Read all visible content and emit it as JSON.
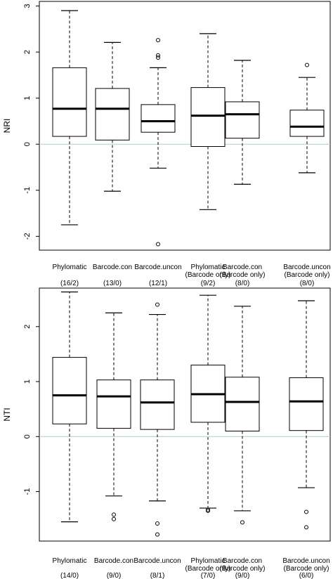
{
  "chart_data": [
    {
      "type": "box",
      "ylabel": "NRI",
      "ylim": [
        -2.3,
        3.1
      ],
      "yticks": [
        "-2",
        "-1",
        "0",
        "1",
        "2",
        "3"
      ],
      "reference_line": 0,
      "reference_color": "#9fd3d8",
      "categories": [
        {
          "line1": "Phylomatic",
          "line2": "",
          "count": "(16/2)"
        },
        {
          "line1": "Barcode.con",
          "line2": "",
          "count": "(13/0)"
        },
        {
          "line1": "Barcode.uncon",
          "line2": "",
          "count": "(12/1)"
        },
        {
          "line1": "Phylomatic",
          "line2": "(Barcode only)",
          "count": "(9/2)"
        },
        {
          "line1": "Barcode.con",
          "line2": "(Barcode only)",
          "count": "(8/0)"
        },
        {
          "line1": "Barcode.uncon",
          "line2": "(Barcode only)",
          "count": "(8/0)"
        }
      ],
      "boxes": [
        {
          "whisker_low": -1.75,
          "q1": 0.17,
          "median": 0.77,
          "q3": 1.66,
          "whisker_high": 2.9,
          "outliers": []
        },
        {
          "whisker_low": -1.02,
          "q1": 0.09,
          "median": 0.77,
          "q3": 1.21,
          "whisker_high": 2.21,
          "outliers": []
        },
        {
          "whisker_low": -0.52,
          "q1": 0.26,
          "median": 0.5,
          "q3": 0.86,
          "whisker_high": 1.66,
          "outliers": [
            1.88,
            1.93,
            2.26,
            -2.17
          ]
        },
        {
          "whisker_low": -1.42,
          "q1": -0.05,
          "median": 0.62,
          "q3": 1.23,
          "whisker_high": 2.4,
          "outliers": []
        },
        {
          "whisker_low": -0.87,
          "q1": 0.13,
          "median": 0.65,
          "q3": 0.92,
          "whisker_high": 1.82,
          "outliers": []
        },
        {
          "whisker_low": -0.62,
          "q1": 0.17,
          "median": 0.38,
          "q3": 0.74,
          "whisker_high": 1.45,
          "outliers": [
            1.72
          ]
        }
      ]
    },
    {
      "type": "box",
      "ylabel": "NTI",
      "ylim": [
        -1.9,
        2.7
      ],
      "yticks": [
        "-1",
        "0",
        "1",
        "2"
      ],
      "reference_line": 0,
      "reference_color": "#9fd3d8",
      "categories": [
        {
          "line1": "Phylomatic",
          "line2": "",
          "count": "(14/0)"
        },
        {
          "line1": "Barcode.con",
          "line2": "",
          "count": "(9/0)"
        },
        {
          "line1": "Barcode.uncon",
          "line2": "",
          "count": "(8/1)"
        },
        {
          "line1": "Phylomatic",
          "line2": "(Barcode only)",
          "count": "(7/0)"
        },
        {
          "line1": "Barcode.con",
          "line2": "(Barcode only)",
          "count": "(9/0)"
        },
        {
          "line1": "Barcode.uncon",
          "line2": "(Barcode only)",
          "count": "(6/0)"
        }
      ],
      "boxes": [
        {
          "whisker_low": -1.55,
          "q1": 0.23,
          "median": 0.75,
          "q3": 1.44,
          "whisker_high": 2.63,
          "outliers": []
        },
        {
          "whisker_low": -1.08,
          "q1": 0.15,
          "median": 0.73,
          "q3": 1.03,
          "whisker_high": 2.25,
          "outliers": [
            -1.42,
            -1.5
          ]
        },
        {
          "whisker_low": -1.17,
          "q1": 0.13,
          "median": 0.62,
          "q3": 1.03,
          "whisker_high": 2.22,
          "outliers": [
            2.4,
            -1.58,
            -1.78
          ]
        },
        {
          "whisker_low": -1.3,
          "q1": 0.26,
          "median": 0.77,
          "q3": 1.3,
          "whisker_high": 2.57,
          "outliers": [
            -1.33,
            -1.35
          ]
        },
        {
          "whisker_low": -1.35,
          "q1": 0.1,
          "median": 0.63,
          "q3": 1.08,
          "whisker_high": 2.37,
          "outliers": [
            -1.56
          ]
        },
        {
          "whisker_low": -0.93,
          "q1": 0.11,
          "median": 0.64,
          "q3": 1.07,
          "whisker_high": 2.47,
          "outliers": [
            -1.37,
            -1.65
          ]
        }
      ]
    }
  ]
}
